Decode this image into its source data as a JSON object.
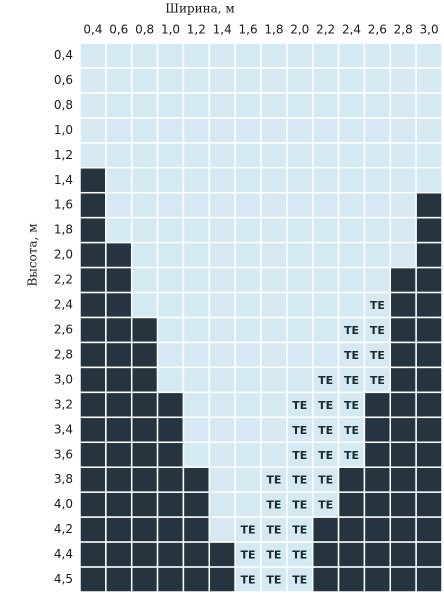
{
  "header": {
    "title": "Ширина, м",
    "y_label": "Высота, м"
  },
  "colors": {
    "d": "#25343f",
    "l": "#d4e9f1",
    "TE": "#d4e9f1"
  },
  "columns": [
    "0,4",
    "0,6",
    "0,8",
    "1,0",
    "1,2",
    "1,4",
    "1,6",
    "1,8",
    "2,0",
    "2,2",
    "2,4",
    "2,6",
    "2,8",
    "3,0"
  ],
  "rows": [
    {
      "label": "0,4",
      "cells": [
        "l",
        "l",
        "l",
        "l",
        "l",
        "l",
        "l",
        "l",
        "l",
        "l",
        "l",
        "l",
        "l",
        "l"
      ]
    },
    {
      "label": "0,6",
      "cells": [
        "l",
        "l",
        "l",
        "l",
        "l",
        "l",
        "l",
        "l",
        "l",
        "l",
        "l",
        "l",
        "l",
        "l"
      ]
    },
    {
      "label": "0,8",
      "cells": [
        "l",
        "l",
        "l",
        "l",
        "l",
        "l",
        "l",
        "l",
        "l",
        "l",
        "l",
        "l",
        "l",
        "l"
      ]
    },
    {
      "label": "1,0",
      "cells": [
        "l",
        "l",
        "l",
        "l",
        "l",
        "l",
        "l",
        "l",
        "l",
        "l",
        "l",
        "l",
        "l",
        "l"
      ]
    },
    {
      "label": "1,2",
      "cells": [
        "l",
        "l",
        "l",
        "l",
        "l",
        "l",
        "l",
        "l",
        "l",
        "l",
        "l",
        "l",
        "l",
        "l"
      ]
    },
    {
      "label": "1,4",
      "cells": [
        "d",
        "l",
        "l",
        "l",
        "l",
        "l",
        "l",
        "l",
        "l",
        "l",
        "l",
        "l",
        "l",
        "l"
      ]
    },
    {
      "label": "1,6",
      "cells": [
        "d",
        "l",
        "l",
        "l",
        "l",
        "l",
        "l",
        "l",
        "l",
        "l",
        "l",
        "l",
        "l",
        "d"
      ]
    },
    {
      "label": "1,8",
      "cells": [
        "d",
        "l",
        "l",
        "l",
        "l",
        "l",
        "l",
        "l",
        "l",
        "l",
        "l",
        "l",
        "l",
        "d"
      ]
    },
    {
      "label": "2,0",
      "cells": [
        "d",
        "d",
        "l",
        "l",
        "l",
        "l",
        "l",
        "l",
        "l",
        "l",
        "l",
        "l",
        "l",
        "d"
      ]
    },
    {
      "label": "2,2",
      "cells": [
        "d",
        "d",
        "l",
        "l",
        "l",
        "l",
        "l",
        "l",
        "l",
        "l",
        "l",
        "l",
        "d",
        "d"
      ]
    },
    {
      "label": "2,4",
      "cells": [
        "d",
        "d",
        "l",
        "l",
        "l",
        "l",
        "l",
        "l",
        "l",
        "l",
        "l",
        "TE",
        "d",
        "d"
      ]
    },
    {
      "label": "2,6",
      "cells": [
        "d",
        "d",
        "d",
        "l",
        "l",
        "l",
        "l",
        "l",
        "l",
        "l",
        "TE",
        "TE",
        "d",
        "d"
      ]
    },
    {
      "label": "2,8",
      "cells": [
        "d",
        "d",
        "d",
        "l",
        "l",
        "l",
        "l",
        "l",
        "l",
        "l",
        "TE",
        "TE",
        "d",
        "d"
      ]
    },
    {
      "label": "3,0",
      "cells": [
        "d",
        "d",
        "d",
        "l",
        "l",
        "l",
        "l",
        "l",
        "l",
        "TE",
        "TE",
        "TE",
        "d",
        "d"
      ]
    },
    {
      "label": "3,2",
      "cells": [
        "d",
        "d",
        "d",
        "d",
        "l",
        "l",
        "l",
        "l",
        "TE",
        "TE",
        "TE",
        "d",
        "d",
        "d"
      ]
    },
    {
      "label": "3,4",
      "cells": [
        "d",
        "d",
        "d",
        "d",
        "l",
        "l",
        "l",
        "l",
        "TE",
        "TE",
        "TE",
        "d",
        "d",
        "d"
      ]
    },
    {
      "label": "3,6",
      "cells": [
        "d",
        "d",
        "d",
        "d",
        "l",
        "l",
        "l",
        "l",
        "TE",
        "TE",
        "TE",
        "d",
        "d",
        "d"
      ]
    },
    {
      "label": "3,8",
      "cells": [
        "d",
        "d",
        "d",
        "d",
        "d",
        "l",
        "l",
        "TE",
        "TE",
        "TE",
        "d",
        "d",
        "d",
        "d"
      ]
    },
    {
      "label": "4,0",
      "cells": [
        "d",
        "d",
        "d",
        "d",
        "d",
        "l",
        "l",
        "TE",
        "TE",
        "TE",
        "d",
        "d",
        "d",
        "d"
      ]
    },
    {
      "label": "4,2",
      "cells": [
        "d",
        "d",
        "d",
        "d",
        "d",
        "l",
        "TE",
        "TE",
        "TE",
        "d",
        "d",
        "d",
        "d",
        "d"
      ]
    },
    {
      "label": "4,4",
      "cells": [
        "d",
        "d",
        "d",
        "d",
        "d",
        "d",
        "TE",
        "TE",
        "TE",
        "d",
        "d",
        "d",
        "d",
        "d"
      ]
    },
    {
      "label": "4,5",
      "cells": [
        "d",
        "d",
        "d",
        "d",
        "d",
        "d",
        "TE",
        "TE",
        "TE",
        "d",
        "d",
        "d",
        "d",
        "d"
      ]
    }
  ]
}
